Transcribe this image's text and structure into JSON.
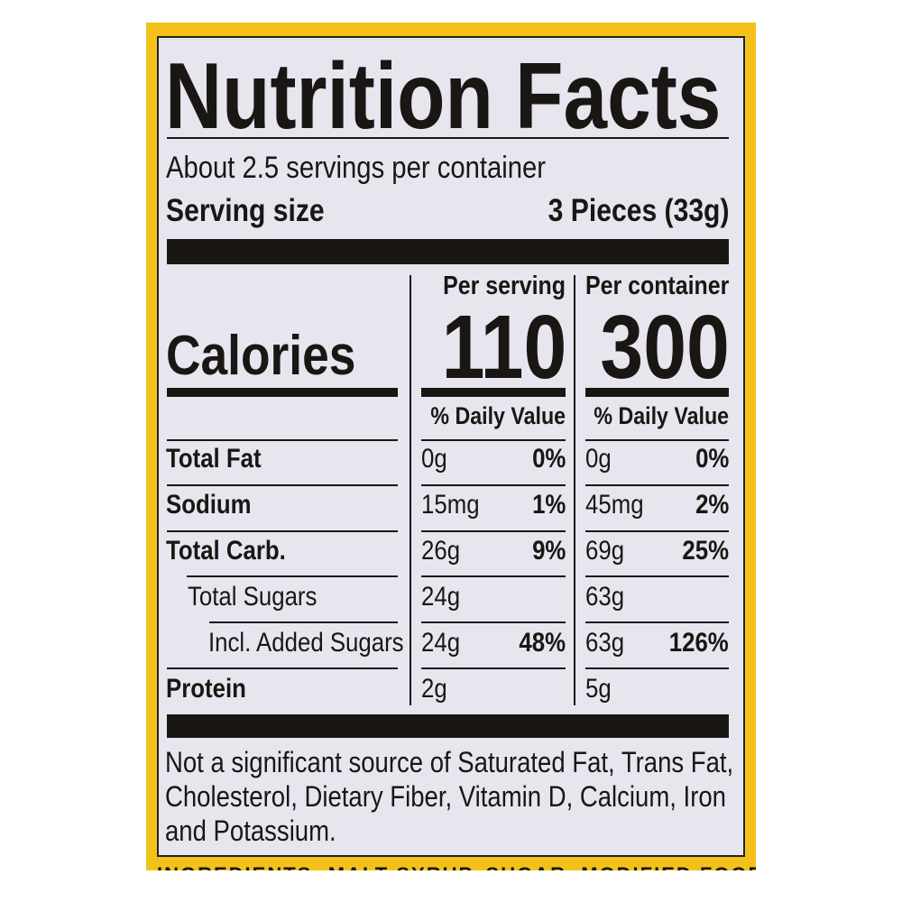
{
  "title": "Nutrition Facts",
  "servings_per_container": "About 2.5 servings per container",
  "serving_size": {
    "label": "Serving size",
    "value": "3 Pieces  (33g)"
  },
  "calories": {
    "label": "Calories",
    "per_serving_header": "Per serving",
    "per_container_header": "Per container",
    "per_serving": "110",
    "per_container": "300"
  },
  "dv_header": "% Daily Value",
  "rows": [
    {
      "name": "Total Fat",
      "serv_amt": "0g",
      "serv_dv": "0%",
      "cont_amt": "0g",
      "cont_dv": "0%"
    },
    {
      "name": "Sodium",
      "serv_amt": "15mg",
      "serv_dv": "1%",
      "cont_amt": "45mg",
      "cont_dv": "2%"
    },
    {
      "name": "Total Carb.",
      "serv_amt": "26g",
      "serv_dv": "9%",
      "cont_amt": "69g",
      "cont_dv": "25%"
    },
    {
      "name": "Total Sugars",
      "serv_amt": "24g",
      "serv_dv": "",
      "cont_amt": "63g",
      "cont_dv": ""
    },
    {
      "name": "Incl. Added Sugars",
      "serv_amt": "24g",
      "serv_dv": "48%",
      "cont_amt": "63g",
      "cont_dv": "126%"
    },
    {
      "name": "Protein",
      "serv_amt": "2g",
      "serv_dv": "",
      "cont_amt": "5g",
      "cont_dv": ""
    }
  ],
  "footnote": [
    "Not a significant source of Saturated Fat, Trans Fat,",
    "Cholesterol, Dietary Fiber, Vitamin D, Calcium, Iron",
    "and Potassium."
  ],
  "ingredients_partial": "INGREDIENTS: MALT SYRUP, SUGAR, MODIFIED FOOD",
  "colors": {
    "panel": "#f2c21a",
    "label_bg": "#e7e6ef",
    "ink": "#1a1614"
  }
}
